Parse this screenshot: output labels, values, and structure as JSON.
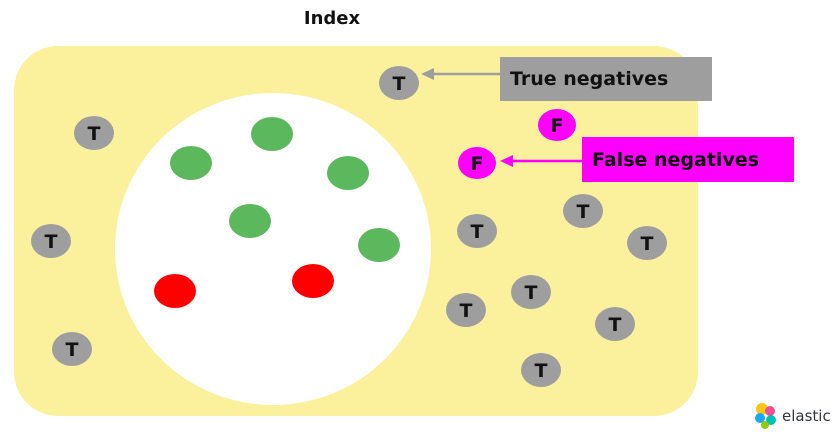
{
  "title": "Index",
  "labels": {
    "true_negatives": "True negatives",
    "false_negatives": "False negatives"
  },
  "markers": {
    "true_letter": "T",
    "false_letter": "F"
  },
  "logo": {
    "text": "elastic",
    "icon": "elastic-logo-icon"
  },
  "colors": {
    "index_fill": "#fbf19c",
    "selection_fill": "#ffffff",
    "true_positive": "#5cb85c",
    "false_positive": "#ff0000",
    "true_negative": "#9e9e9e",
    "false_negative": "#ff00ff",
    "arrow_gray": "#9e9e9e",
    "arrow_magenta": "#ff00ff"
  }
}
